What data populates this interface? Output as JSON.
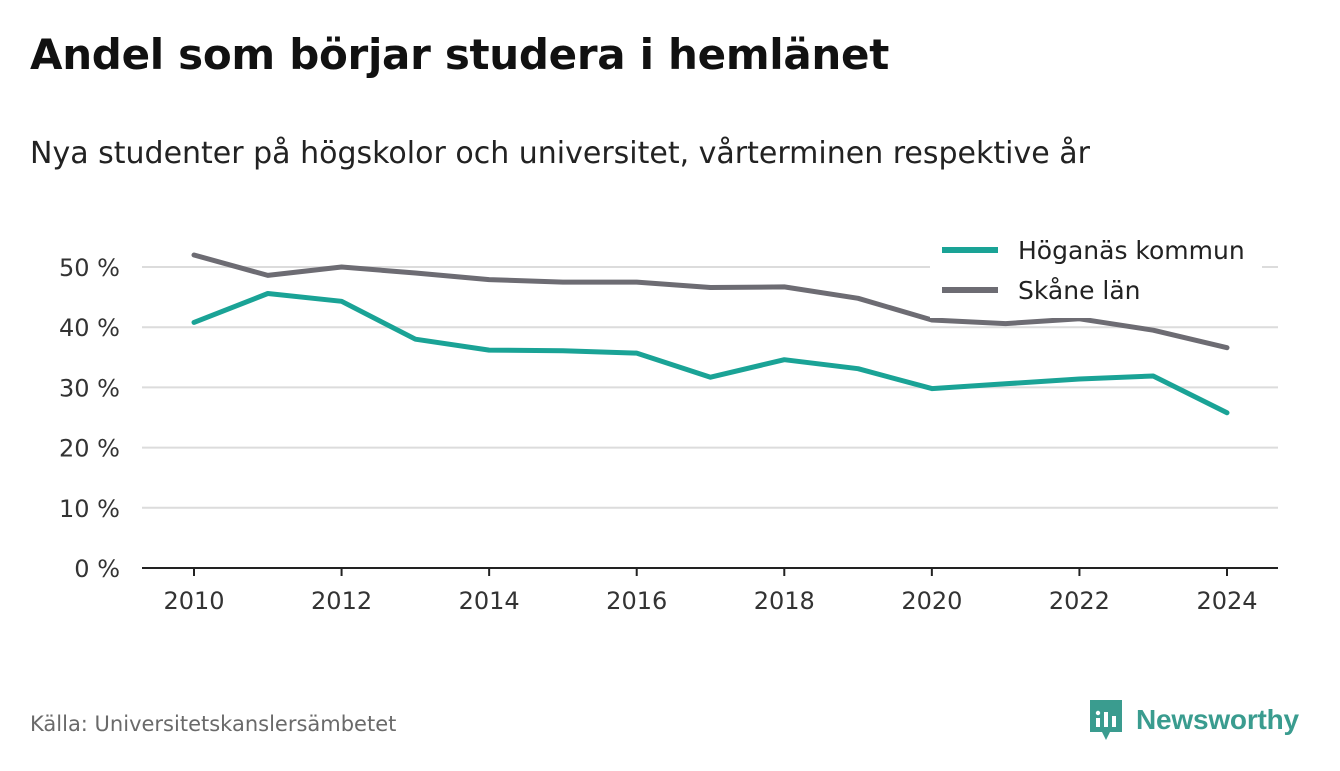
{
  "title": "Andel som börjar studera i hemlänet",
  "subtitle": "Nya studenter på högskolor och universitet, vårterminen respektive år",
  "source": "Källa: Universitetskanslersämbetet",
  "logo": {
    "text": "Newsworthy",
    "icon": "newsworthy-logo-icon",
    "color": "#3a9c8f"
  },
  "chart_data": {
    "type": "line",
    "x": [
      2010,
      2011,
      2012,
      2013,
      2014,
      2015,
      2016,
      2017,
      2018,
      2019,
      2020,
      2021,
      2022,
      2023,
      2024
    ],
    "xticks": [
      2010,
      2012,
      2014,
      2016,
      2018,
      2020,
      2022,
      2024
    ],
    "xtick_labels": [
      "2010",
      "2012",
      "2014",
      "2016",
      "2018",
      "2020",
      "2022",
      "2024"
    ],
    "yticks": [
      0,
      10,
      20,
      30,
      40,
      50
    ],
    "ytick_labels": [
      "0 %",
      "10 %",
      "20 %",
      "30 %",
      "40 %",
      "50 %"
    ],
    "ylim": [
      0,
      50
    ],
    "xlim": [
      2010,
      2024
    ],
    "grid": true,
    "legend_position": "top-right",
    "series": [
      {
        "name": "Höganäs kommun",
        "color": "#1aa396",
        "values": [
          40.8,
          45.6,
          44.3,
          38.0,
          36.2,
          36.1,
          35.7,
          31.7,
          34.6,
          33.1,
          29.8,
          30.6,
          31.4,
          31.9,
          25.8
        ]
      },
      {
        "name": "Skåne län",
        "color": "#6d6c73",
        "values": [
          52.0,
          48.6,
          50.0,
          49.0,
          47.9,
          47.5,
          47.5,
          46.6,
          46.7,
          44.8,
          41.2,
          40.6,
          41.4,
          39.5,
          36.6
        ]
      }
    ]
  }
}
